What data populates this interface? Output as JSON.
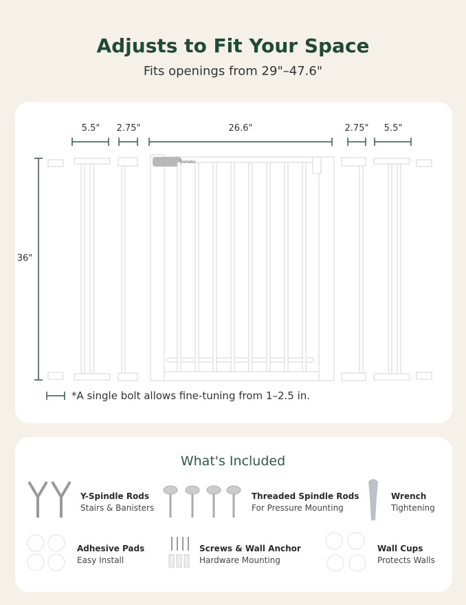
{
  "header": {
    "title": "Adjusts to Fit Your Space",
    "subtitle": "Fits openings from 29\"–47.6\""
  },
  "diagram": {
    "brand": "Dohelio",
    "widths": [
      "5.5\"",
      "2.75\"",
      "26.6\"",
      "2.75\"",
      "5.5\""
    ],
    "height": "36\"",
    "note": "*A single bolt allows fine-tuning from 1–2.5 in."
  },
  "included": {
    "title": "What's Included",
    "items": [
      {
        "name": "Y-Spindle Rods",
        "desc": "Stairs & Banisters"
      },
      {
        "name": "Threaded Spindle Rods",
        "desc": "For Pressure Mounting"
      },
      {
        "name": "Wrench",
        "desc": "Tightening"
      },
      {
        "name": "Adhesive Pads",
        "desc": "Easy Install"
      },
      {
        "name": "Screws & Wall Anchor",
        "desc": "Hardware Mounting"
      },
      {
        "name": "Wall Cups",
        "desc": "Protects Walls"
      }
    ]
  }
}
